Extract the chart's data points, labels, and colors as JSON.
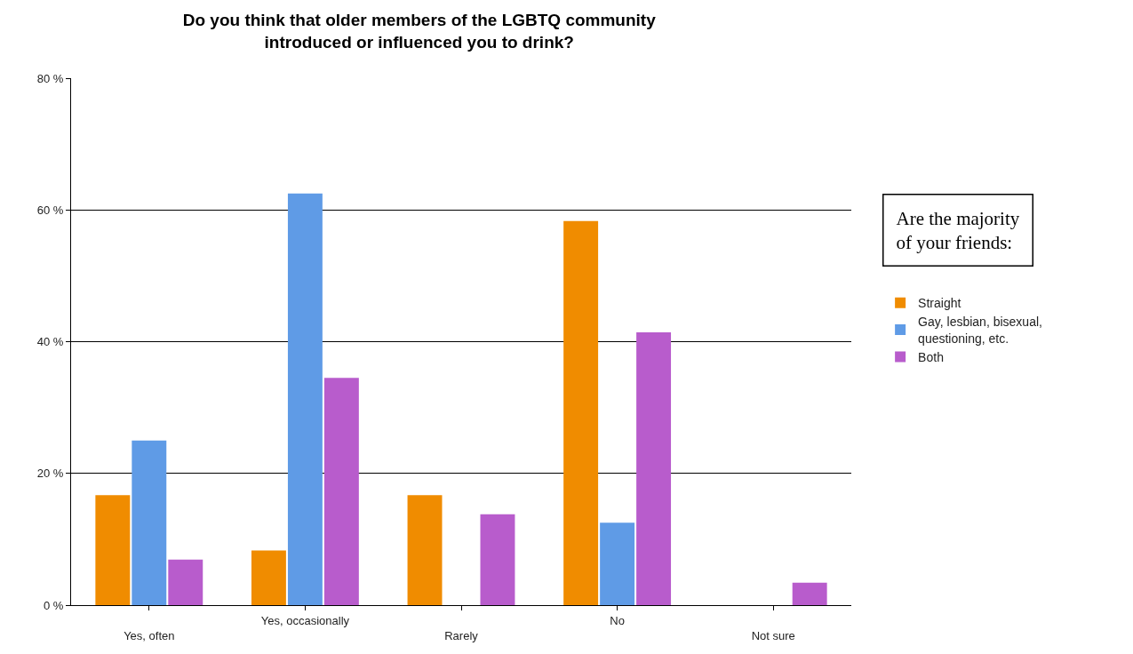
{
  "chart_data": {
    "type": "bar",
    "title": "Do you think that older members of the LGBTQ community introduced or influenced you to drink?",
    "categories": [
      "Yes, often",
      "Yes, occasionally",
      "Rarely",
      "No",
      "Not sure"
    ],
    "series": [
      {
        "name": "Straight",
        "color": "#f08c00",
        "values": [
          16.7,
          8.3,
          16.7,
          58.3,
          0
        ]
      },
      {
        "name": "Gay, lesbian, bisexual, questioning, etc.",
        "color": "#5f9be6",
        "values": [
          25,
          62.5,
          0,
          12.5,
          0
        ]
      },
      {
        "name": "Both",
        "color": "#b85ccc",
        "values": [
          6.9,
          34.5,
          13.8,
          41.4,
          3.4
        ]
      }
    ],
    "legend_title": "Are the majority of your friends:",
    "ylim": [
      0,
      80
    ],
    "yticks": [
      {
        "value": 0,
        "label": "0 %"
      },
      {
        "value": 20,
        "label": "20 %"
      },
      {
        "value": 40,
        "label": "40 %"
      },
      {
        "value": 60,
        "label": "60 %"
      },
      {
        "value": 80,
        "label": "80 %"
      }
    ],
    "grid": "y",
    "legend": "right"
  }
}
